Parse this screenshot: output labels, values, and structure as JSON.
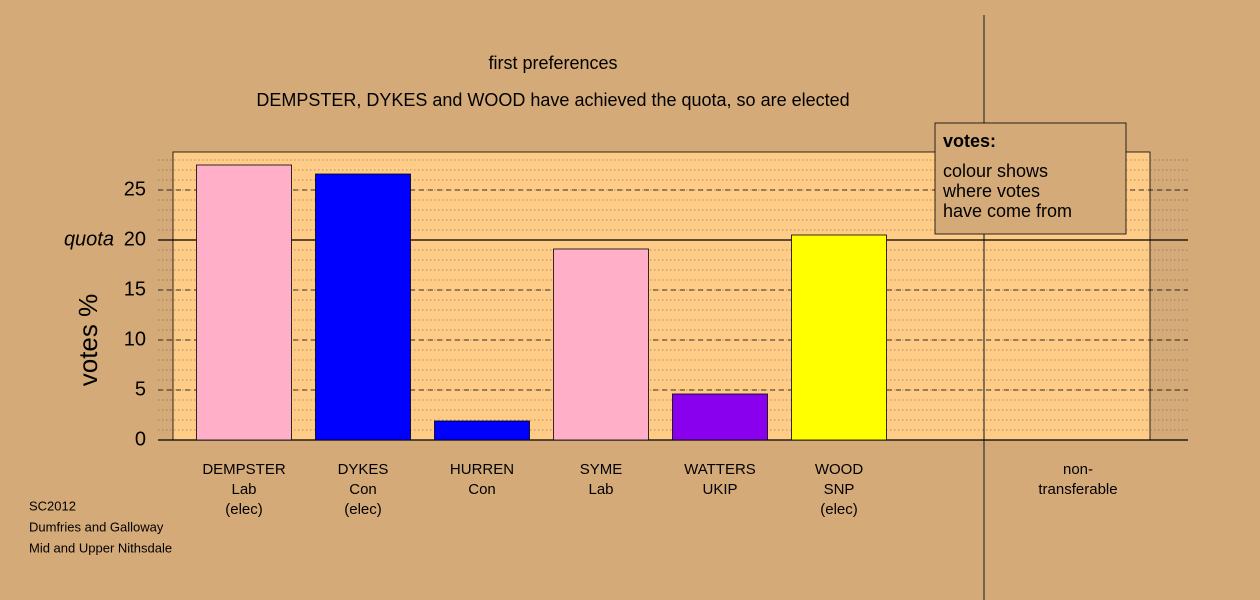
{
  "chart_data": {
    "type": "bar",
    "title": "first preferences",
    "subtitle": "DEMPSTER, DYKES and WOOD have achieved the quota, so are elected",
    "y_label": "votes %",
    "categories": [
      [
        "DEMPSTER",
        "Lab",
        "(elec)"
      ],
      [
        "DYKES",
        "Con",
        "(elec)"
      ],
      [
        "HURREN",
        "Con"
      ],
      [
        "SYME",
        "Lab"
      ],
      [
        "WATTERS",
        "UKIP"
      ],
      [
        "WOOD",
        "SNP",
        "(elec)"
      ],
      [
        "non-",
        "transferable"
      ]
    ],
    "values": [
      27.5,
      26.6,
      1.9,
      19.1,
      4.6,
      20.5,
      null
    ],
    "colors": [
      "#ffb0c8",
      "#0000ff",
      "#0000ff",
      "#ffb0c8",
      "#8800ee",
      "#ffff00",
      null
    ],
    "ylim": [
      0,
      28.8
    ],
    "yticks": [
      0,
      5,
      10,
      15,
      20,
      25
    ],
    "minor_grid_step": 1,
    "reference_line": {
      "value": 20,
      "label": "quota"
    },
    "legend": {
      "title": "votes:",
      "lines": [
        "colour shows",
        "where votes",
        "have come from"
      ]
    },
    "footer": [
      "SC2012",
      "Dumfries and Galloway",
      "Mid and Upper Nithsdale"
    ]
  }
}
